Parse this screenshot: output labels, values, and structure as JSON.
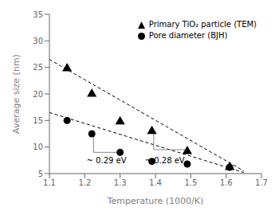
{
  "chart_data": {
    "type": "scatter",
    "xlabel": "Temperature (1000/K)",
    "ylabel": "Average size (nm)",
    "xlim": [
      1.1,
      1.7
    ],
    "ylim": [
      5,
      35
    ],
    "xticks": [
      1.1,
      1.2,
      1.3,
      1.4,
      1.5,
      1.6,
      1.7
    ],
    "yticks": [
      5,
      10,
      15,
      20,
      25,
      30,
      35
    ],
    "grid": false,
    "legend": "upper right",
    "series": [
      {
        "type": "line",
        "line_style": "dashed",
        "color": "black",
        "x": [
          1.1,
          1.65
        ],
        "values": [
          26.5,
          5.5
        ]
      },
      {
        "type": "line",
        "line_style": "dashed",
        "color": "black",
        "x": [
          1.1,
          1.65
        ],
        "values": [
          16.5,
          5.2
        ]
      },
      {
        "name": "Primary TiO₂ particle (TEM)",
        "type": "scatter",
        "marker": "triangle",
        "color": "black",
        "x": [
          1.15,
          1.22,
          1.3,
          1.39,
          1.49,
          1.61
        ],
        "values": [
          24.8,
          20.0,
          14.8,
          13.0,
          9.2,
          6.2
        ]
      },
      {
        "name": "Pore diameter (BJH)",
        "type": "scatter",
        "marker": "circle",
        "color": "black",
        "x": [
          1.15,
          1.22,
          1.3,
          1.39,
          1.49,
          1.61
        ],
        "values": [
          15.0,
          12.5,
          9.0,
          7.3,
          6.8,
          6.2
        ]
      },
      {
        "type": "line",
        "line_style": "solid",
        "color": "#888888",
        "x": [
          1.225,
          1.225,
          1.305
        ],
        "values": [
          12.5,
          9.0,
          9.0
        ]
      },
      {
        "type": "line",
        "line_style": "solid",
        "color": "#888888",
        "x": [
          1.395,
          1.395,
          1.49
        ],
        "values": [
          13.0,
          9.5,
          9.5
        ]
      }
    ],
    "annotations": [
      {
        "text": "~ 0.29 eV",
        "x": 1.205,
        "y": 8.3
      },
      {
        "text": "~ 0.28 eV",
        "x": 1.37,
        "y": 8.3
      }
    ]
  }
}
